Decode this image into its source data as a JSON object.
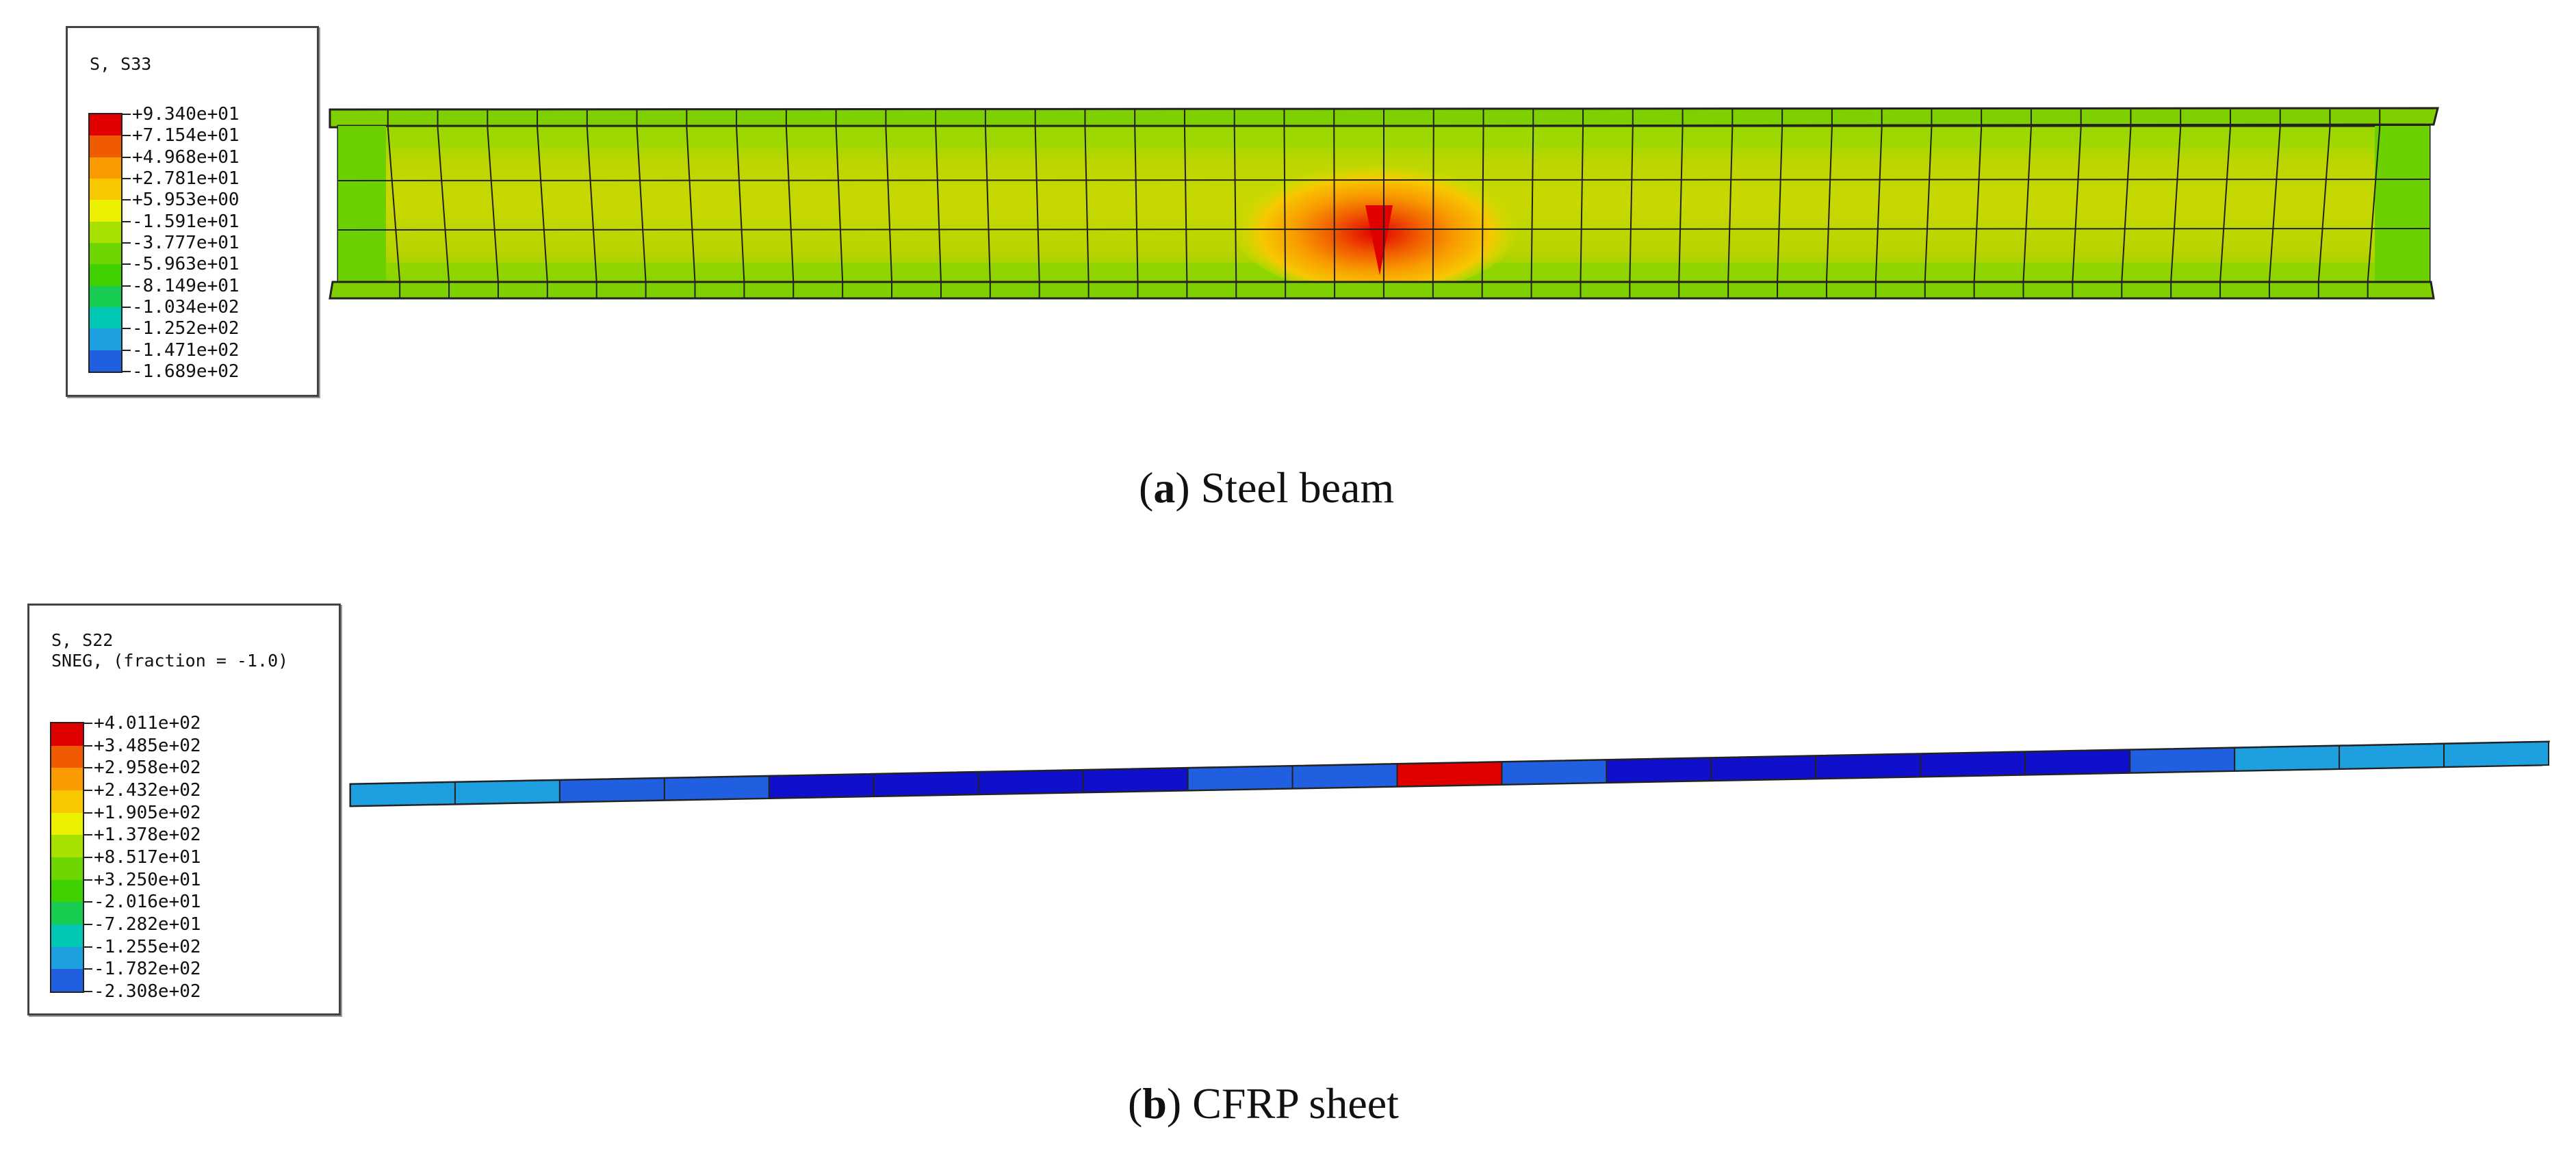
{
  "panel_a": {
    "legend_title": "S, S33",
    "legend_values": [
      "+9.340e+01",
      "+7.154e+01",
      "+4.968e+01",
      "+2.781e+01",
      "+5.953e+00",
      "-1.591e+01",
      "-3.777e+01",
      "-5.963e+01",
      "-8.149e+01",
      "-1.034e+02",
      "-1.252e+02",
      "-1.471e+02",
      "-1.689e+02"
    ],
    "colors": [
      "#e10000",
      "#f05a00",
      "#f89a00",
      "#f7c800",
      "#eaf000",
      "#a8e000",
      "#6dd600",
      "#3fd000",
      "#18cc52",
      "#00c8b4",
      "#1e9fe0",
      "#2060e0",
      "#1010cc"
    ],
    "caption_letter": "a",
    "caption_text": "Steel beam"
  },
  "panel_b": {
    "legend_title_line1": "S, S22",
    "legend_title_line2": "SNEG, (fraction = -1.0)",
    "legend_values": [
      "+4.011e+02",
      "+3.485e+02",
      "+2.958e+02",
      "+2.432e+02",
      "+1.905e+02",
      "+1.378e+02",
      "+8.517e+01",
      "+3.250e+01",
      "-2.016e+01",
      "-7.282e+01",
      "-1.255e+02",
      "-1.782e+02",
      "-2.308e+02"
    ],
    "colors": [
      "#e10000",
      "#f05a00",
      "#f89a00",
      "#f7c800",
      "#eaf000",
      "#a8e000",
      "#6dd600",
      "#3fd000",
      "#18cc52",
      "#00c8b4",
      "#1e9fe0",
      "#2060e0",
      "#1010cc"
    ],
    "caption_letter": "b",
    "caption_text": "CFRP sheet"
  }
}
